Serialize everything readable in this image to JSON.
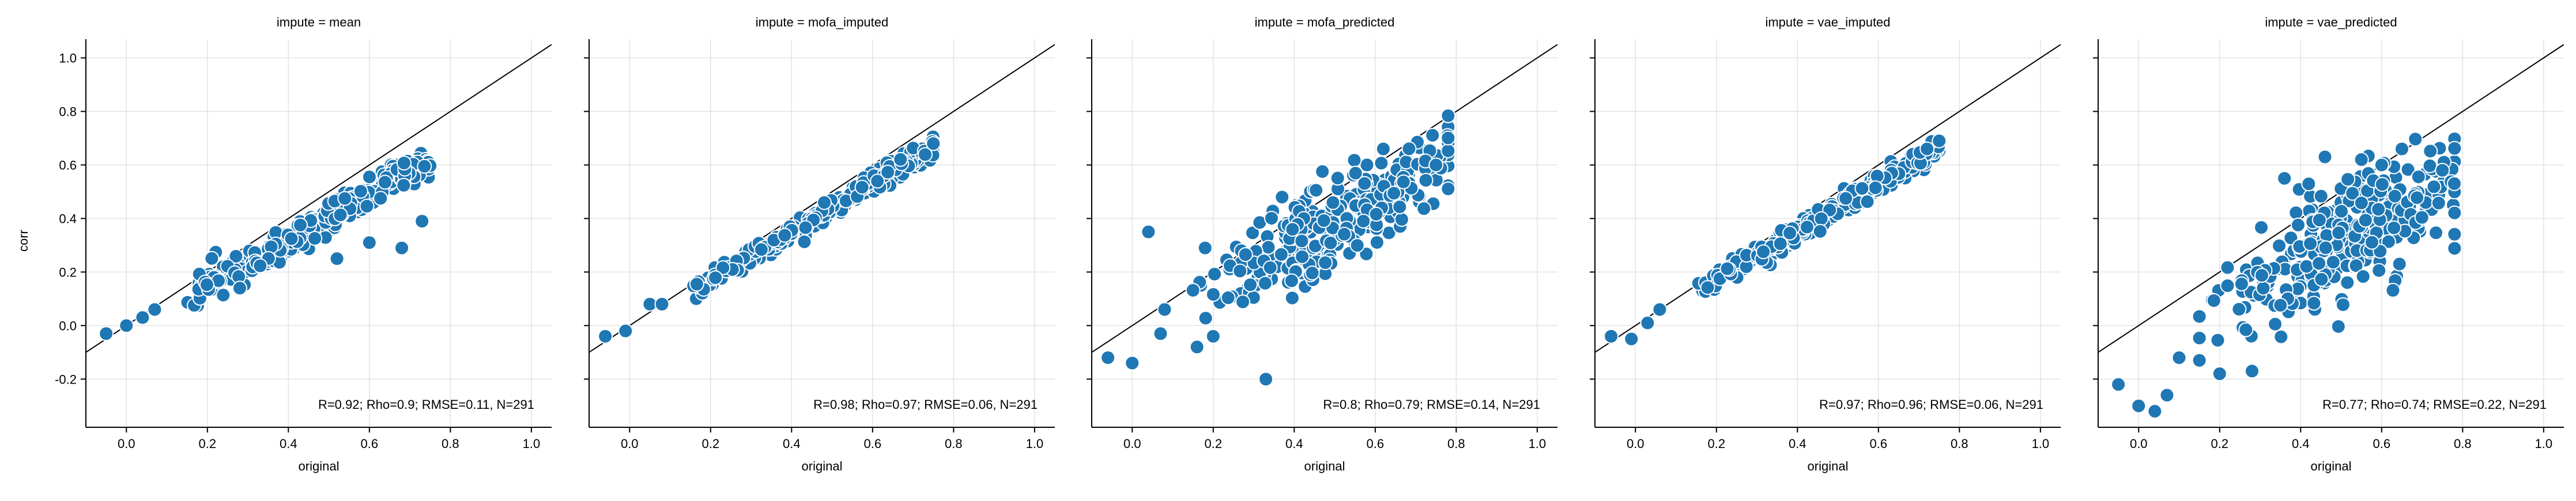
{
  "figure": {
    "ylabel": "corr",
    "xlabel": "original"
  },
  "chart_data": [
    {
      "type": "scatter",
      "title": "impute = mean",
      "xlabel": "original",
      "ylabel": "corr",
      "xlim": [
        -0.1,
        1.05
      ],
      "ylim": [
        -0.38,
        1.07
      ],
      "xticks": [
        "0.0",
        "0.2",
        "0.4",
        "0.6",
        "0.8",
        "1.0"
      ],
      "yticks": [
        "-0.2",
        "0.0",
        "0.2",
        "0.4",
        "0.6",
        "0.8",
        "1.0"
      ],
      "grid": true,
      "annotation": "R=0.92; Rho=0.9; RMSE=0.11, N=291",
      "reference_line": "y = x",
      "mode": "tight",
      "slope": 0.85,
      "offset": -0.02,
      "noise": 0.03,
      "seed": 11,
      "extra": [
        [
          -0.05,
          -0.03
        ],
        [
          0.0,
          0.0
        ],
        [
          0.04,
          0.03
        ],
        [
          0.07,
          0.06
        ],
        [
          0.68,
          0.29
        ],
        [
          0.73,
          0.39
        ],
        [
          0.52,
          0.25
        ],
        [
          0.6,
          0.31
        ],
        [
          0.28,
          0.14
        ]
      ]
    },
    {
      "type": "scatter",
      "title": "impute = mofa_imputed",
      "xlabel": "original",
      "ylabel": "",
      "xlim": [
        -0.1,
        1.05
      ],
      "ylim": [
        -0.38,
        1.07
      ],
      "xticks": [
        "0.0",
        "0.2",
        "0.4",
        "0.6",
        "0.8",
        "1.0"
      ],
      "yticks": [
        "-0.2",
        "0.0",
        "0.2",
        "0.4",
        "0.6",
        "0.8",
        "1.0"
      ],
      "grid": true,
      "annotation": "R=0.98; Rho=0.97; RMSE=0.06, N=291",
      "reference_line": "y = x",
      "mode": "tight",
      "slope": 0.9,
      "offset": -0.01,
      "noise": 0.018,
      "seed": 23,
      "extra": [
        [
          -0.06,
          -0.04
        ],
        [
          -0.01,
          -0.02
        ],
        [
          0.05,
          0.08
        ],
        [
          0.08,
          0.08
        ],
        [
          0.75,
          0.68
        ]
      ]
    },
    {
      "type": "scatter",
      "title": "impute = mofa_predicted",
      "xlabel": "original",
      "ylabel": "",
      "xlim": [
        -0.1,
        1.05
      ],
      "ylim": [
        -0.38,
        1.07
      ],
      "xticks": [
        "0.0",
        "0.2",
        "0.4",
        "0.6",
        "0.8",
        "1.0"
      ],
      "yticks": [
        "-0.2",
        "0.0",
        "0.2",
        "0.4",
        "0.6",
        "0.8",
        "1.0"
      ],
      "grid": true,
      "annotation": "R=0.8; Rho=0.79; RMSE=0.14, N=291",
      "reference_line": "y = x",
      "mode": "cloud",
      "slope": 0.85,
      "offset": -0.03,
      "noise": 0.085,
      "seed": 37,
      "extra": [
        [
          -0.06,
          -0.12
        ],
        [
          0.0,
          -0.14
        ],
        [
          0.04,
          0.35
        ],
        [
          0.07,
          -0.03
        ],
        [
          0.08,
          0.06
        ],
        [
          0.16,
          -0.08
        ],
        [
          0.18,
          0.29
        ],
        [
          0.33,
          -0.2
        ],
        [
          0.37,
          0.48
        ],
        [
          0.62,
          0.66
        ],
        [
          0.75,
          0.6
        ],
        [
          0.2,
          -0.04
        ]
      ]
    },
    {
      "type": "scatter",
      "title": "impute = vae_imputed",
      "xlabel": "original",
      "ylabel": "",
      "xlim": [
        -0.1,
        1.05
      ],
      "ylim": [
        -0.38,
        1.07
      ],
      "xticks": [
        "0.0",
        "0.2",
        "0.4",
        "0.6",
        "0.8",
        "1.0"
      ],
      "yticks": [
        "-0.2",
        "0.0",
        "0.2",
        "0.4",
        "0.6",
        "0.8",
        "1.0"
      ],
      "grid": true,
      "annotation": "R=0.97; Rho=0.96; RMSE=0.06, N=291",
      "reference_line": "y = x",
      "mode": "tight",
      "slope": 0.9,
      "offset": -0.01,
      "noise": 0.02,
      "seed": 51,
      "extra": [
        [
          -0.06,
          -0.04
        ],
        [
          -0.01,
          -0.05
        ],
        [
          0.03,
          0.01
        ],
        [
          0.06,
          0.06
        ],
        [
          0.75,
          0.69
        ],
        [
          0.72,
          0.66
        ]
      ]
    },
    {
      "type": "scatter",
      "title": "impute = vae_predicted",
      "xlabel": "original",
      "ylabel": "",
      "xlim": [
        -0.1,
        1.05
      ],
      "ylim": [
        -0.38,
        1.07
      ],
      "xticks": [
        "0.0",
        "0.2",
        "0.4",
        "0.6",
        "0.8",
        "1.0"
      ],
      "yticks": [
        "-0.2",
        "0.0",
        "0.2",
        "0.4",
        "0.6",
        "0.8",
        "1.0"
      ],
      "grid": true,
      "annotation": "R=0.77; Rho=0.74; RMSE=0.22, N=291",
      "reference_line": "y = x",
      "mode": "cloud",
      "slope": 0.8,
      "offset": -0.1,
      "noise": 0.11,
      "seed": 67,
      "extra": [
        [
          -0.05,
          -0.22
        ],
        [
          0.0,
          -0.3
        ],
        [
          0.04,
          -0.32
        ],
        [
          0.07,
          -0.26
        ],
        [
          0.1,
          -0.12
        ],
        [
          0.15,
          -0.13
        ],
        [
          0.2,
          -0.18
        ],
        [
          0.28,
          -0.17
        ],
        [
          0.36,
          0.55
        ],
        [
          0.46,
          0.63
        ],
        [
          0.55,
          0.62
        ],
        [
          0.6,
          0.6
        ],
        [
          0.65,
          0.66
        ],
        [
          0.75,
          0.58
        ]
      ]
    }
  ]
}
